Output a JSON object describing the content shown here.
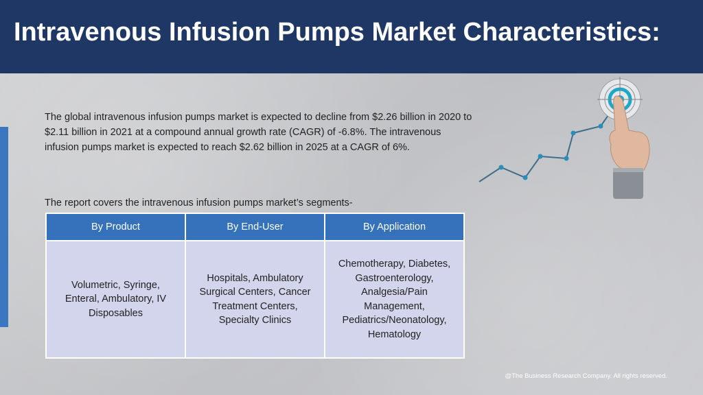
{
  "header": {
    "title": "Intravenous Infusion Pumps Market Characteristics:"
  },
  "intro": {
    "text": "The global intravenous infusion pumps market is expected to decline from $2.26 billion in 2020 to $2.11 billion in 2021 at a compound annual growth rate (CAGR) of -6.8%. The intravenous infusion pumps market is expected to reach $2.62 billion in 2025 at a CAGR of 6%."
  },
  "segments": {
    "label": "The report covers the intravenous infusion pumps market’s segments-",
    "columns": [
      "By Product",
      "By End-User",
      "By Application"
    ],
    "cells": [
      "Volumetric, Syringe, Enteral, Ambulatory, IV Disposables",
      "Hospitals, Ambulatory Surgical Centers, Cancer Treatment Centers, Specialty Clinics",
      "Chemotherapy, Diabetes, Gastroenterology, Analgesia/Pain Management, Pediatrics/Neonatology, Hematology"
    ]
  },
  "footer": {
    "copyright": "@The Business Research Company. All rights reserved."
  },
  "colors": {
    "header_bg": "#1e3764",
    "table_header": "#3572bb",
    "table_cell": "#d3d5ec",
    "accent": "#3b76c0",
    "graph_dot": "#2a8fb8"
  },
  "icons": [
    "growth-line-graphic",
    "target-icon",
    "pointing-hand-icon"
  ]
}
